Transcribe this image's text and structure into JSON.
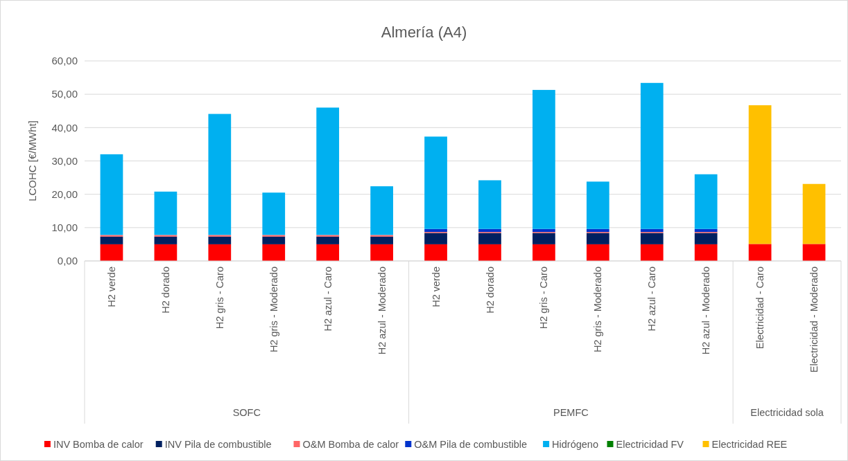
{
  "chart_data": {
    "type": "bar",
    "title": "Almería (A4)",
    "ylabel": "LCOHC [€/MWht]",
    "stacked": true,
    "legend": "bottom",
    "grid": "y",
    "categories": [
      "H2 verde",
      "H2 dorado",
      "H2 gris - Caro",
      "H2 gris - Moderado",
      "H2 azul - Caro",
      "H2 azul - Moderado",
      "H2 verde",
      "H2 dorado",
      "H2 gris - Caro",
      "H2 gris - Moderado",
      "H2 azul - Caro",
      "H2 azul - Moderado",
      "Electricidad - Caro",
      "Electricidad - Moderado"
    ],
    "annotations": [
      "SOFC",
      "PEMFC",
      "Electricidad sola"
    ],
    "ylim": [
      0,
      60
    ],
    "yticks": [
      {
        "value": 0,
        "label": "0,00"
      },
      {
        "value": 10,
        "label": "10,00"
      },
      {
        "value": 20,
        "label": "20,00"
      },
      {
        "value": 30,
        "label": "30,00"
      },
      {
        "value": 40,
        "label": "40,00"
      },
      {
        "value": 50,
        "label": "50,00"
      },
      {
        "value": 60,
        "label": "60,00"
      }
    ],
    "series": [
      {
        "name": "INV Bomba de calor",
        "color": "#ff0000",
        "values": [
          5.0,
          5.0,
          5.0,
          5.0,
          5.0,
          5.0,
          5.0,
          5.0,
          5.0,
          5.0,
          5.0,
          5.0,
          5.1,
          5.1
        ]
      },
      {
        "name": "INV Pila de combustible",
        "color": "#002060",
        "values": [
          2.3,
          2.3,
          2.3,
          2.3,
          2.3,
          2.3,
          3.4,
          3.4,
          3.4,
          3.4,
          3.4,
          3.4,
          0,
          0
        ]
      },
      {
        "name": "O&M Bomba de calor",
        "color": "#ff6666",
        "values": [
          0.5,
          0.5,
          0.5,
          0.5,
          0.5,
          0.5,
          0.3,
          0.3,
          0.3,
          0.3,
          0.3,
          0.3,
          0,
          0
        ]
      },
      {
        "name": "O&M Pila de combustible",
        "color": "#0033cc",
        "values": [
          null,
          null,
          null,
          null,
          null,
          null,
          0.9,
          0.9,
          0.9,
          0.9,
          0.9,
          0.9,
          0,
          0
        ]
      },
      {
        "name": "Hidrógeno",
        "color": "#00b0f0",
        "values": [
          24.2,
          13.0,
          36.3,
          12.7,
          38.2,
          14.6,
          27.7,
          14.6,
          41.7,
          14.2,
          43.8,
          16.4,
          0,
          0
        ]
      },
      {
        "name": "Electricidad FV",
        "color": "#008000",
        "values": [
          0,
          0,
          0,
          0,
          0,
          0,
          0,
          0,
          0,
          0,
          0,
          0,
          0,
          0
        ]
      },
      {
        "name": "Electricidad REE",
        "color": "#ffc000",
        "values": [
          0,
          0,
          0,
          0,
          0,
          0,
          0,
          0,
          0,
          0,
          0,
          0,
          41.6,
          18.0
        ]
      }
    ]
  }
}
